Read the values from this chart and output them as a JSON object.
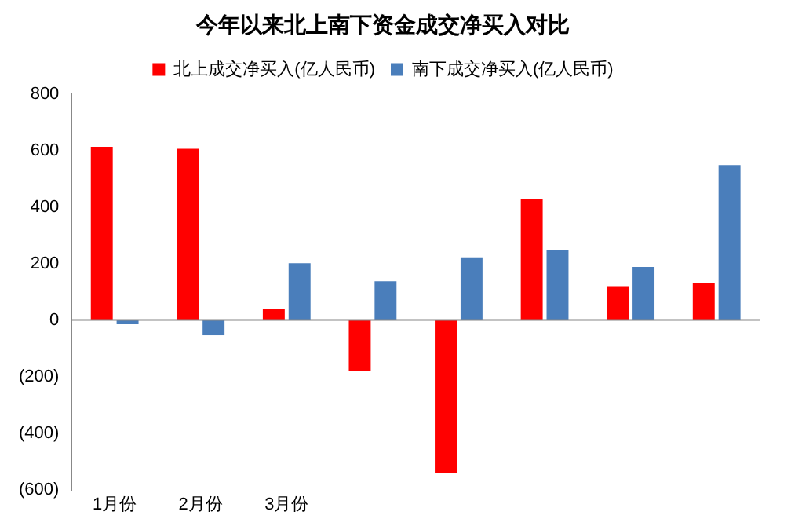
{
  "chart_data": {
    "type": "bar",
    "title": "今年以来北上南下资金成交净买入对比",
    "categories": [
      "1月份",
      "2月份",
      "3月份",
      null,
      null,
      null,
      null,
      null
    ],
    "series": [
      {
        "name": "北上成交净买入(亿人民币)",
        "color": "#ff0000",
        "values": [
          613,
          606,
          40,
          -180,
          -540,
          428,
          120,
          132
        ]
      },
      {
        "name": "南下成交净买入(亿人民币)",
        "color": "#4a7ebb",
        "values": [
          -15,
          -54,
          201,
          137,
          222,
          248,
          188,
          548
        ]
      }
    ],
    "ylim": [
      -600,
      800
    ],
    "yticks": [
      {
        "value": -600,
        "label": "(600)"
      },
      {
        "value": -400,
        "label": "(400)"
      },
      {
        "value": -200,
        "label": "(200)"
      },
      0,
      200,
      400,
      600,
      800
    ],
    "legend": "top"
  }
}
